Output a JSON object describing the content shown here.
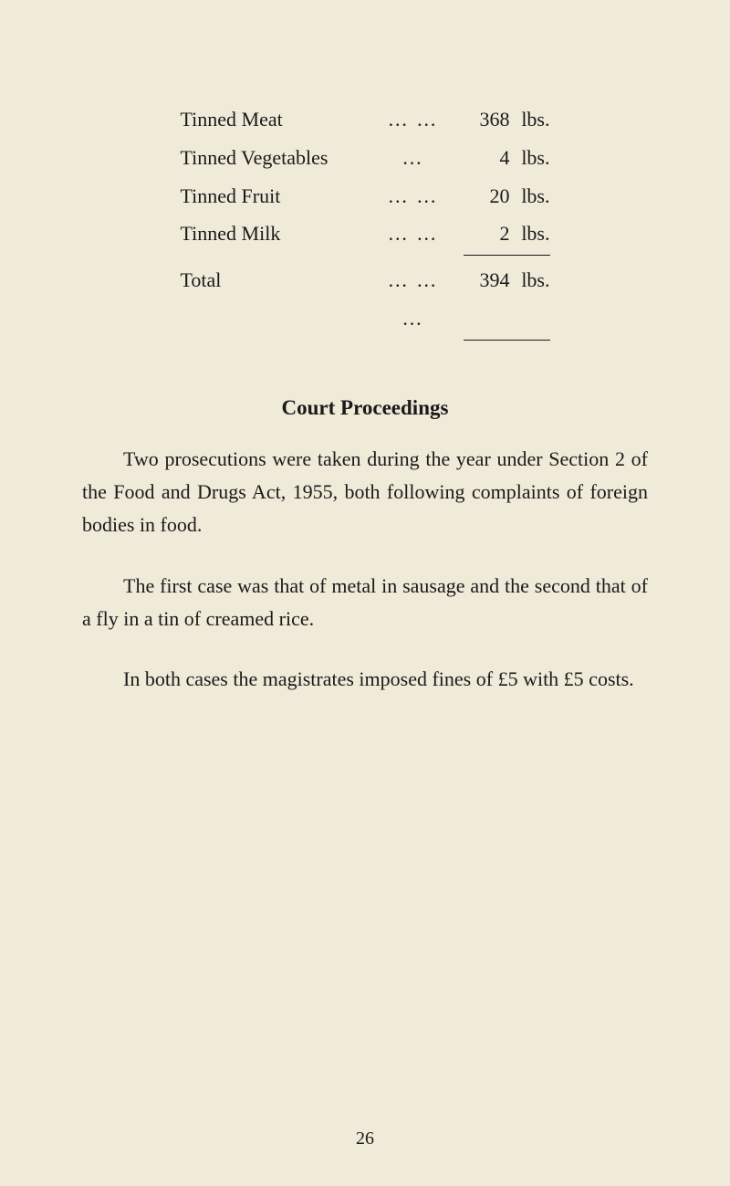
{
  "table": {
    "rows": [
      {
        "name": "Tinned Meat",
        "dots": "…   …",
        "value": "368",
        "unit": "lbs."
      },
      {
        "name": "Tinned Vegetables",
        "dots": "…",
        "value": "4",
        "unit": "lbs."
      },
      {
        "name": "Tinned Fruit",
        "dots": "…   …",
        "value": "20",
        "unit": "lbs."
      },
      {
        "name": "Tinned Milk",
        "dots": "…   …",
        "value": "2",
        "unit": "lbs."
      }
    ],
    "total": {
      "name": "Total",
      "dots": "…   …   …",
      "value": "394",
      "unit": "lbs."
    }
  },
  "heading": "Court Proceedings",
  "paragraphs": {
    "p1": "Two prosecutions were taken during the year under Section 2 of the Food and Drugs Act, 1955, both following complaints of foreign bodies in food.",
    "p2": "The first case was that of metal in sausage and the second that of a fly in a tin of creamed rice.",
    "p3": "In both cases the magistrates imposed fines of £5 with £5 costs."
  },
  "page_number": "26"
}
